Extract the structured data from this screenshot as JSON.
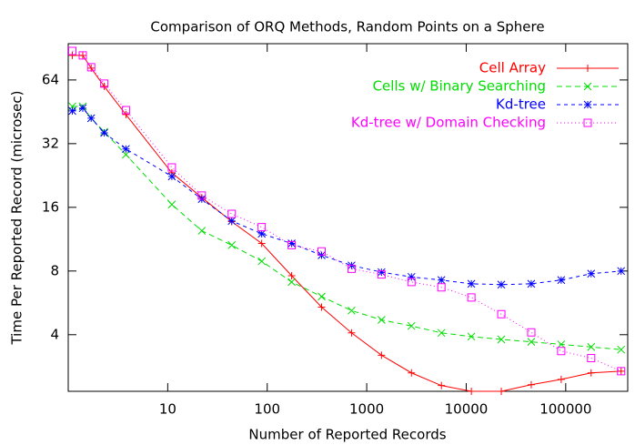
{
  "chart_data": {
    "type": "line",
    "title": "Comparison of ORQ Methods, Random Points on a Sphere",
    "x_label": "Number of Reported Records",
    "y_label": "Time Per Reported Record (microsec)",
    "x": [
      1.1,
      1.4,
      1.7,
      2.3,
      3.8,
      11,
      22,
      44,
      88,
      176,
      352,
      704,
      1408,
      2816,
      5632,
      11264,
      22528,
      45056,
      90112,
      180224,
      360448
    ],
    "series": [
      {
        "name": "Cell Array",
        "color": "#ff0000",
        "dash": "",
        "marker": "plus",
        "values": [
          83.6,
          83.6,
          72.8,
          59.7,
          43.9,
          23.3,
          17.8,
          13.7,
          10.8,
          7.6,
          5.4,
          4.08,
          3.2,
          2.64,
          2.3,
          2.16,
          2.16,
          2.32,
          2.46,
          2.64,
          2.69
        ]
      },
      {
        "name": "Cells w/ Binary Searching",
        "color": "#00dd00",
        "dash": "6 4",
        "marker": "cross",
        "values": [
          48,
          48,
          42.2,
          36.4,
          28.4,
          16.5,
          12.4,
          10.6,
          8.9,
          7.1,
          6.06,
          5.2,
          4.7,
          4.4,
          4.08,
          3.92,
          3.8,
          3.7,
          3.6,
          3.5,
          3.4
        ]
      },
      {
        "name": "Kd-tree",
        "color": "#0000ff",
        "dash": "4 4",
        "marker": "star",
        "values": [
          45.7,
          47.1,
          42.2,
          36.0,
          30.2,
          22.4,
          17.5,
          13.8,
          12.0,
          10.8,
          9.5,
          8.5,
          7.9,
          7.5,
          7.25,
          6.96,
          6.9,
          6.96,
          7.25,
          7.77,
          8.0
        ]
      },
      {
        "name": "Kd-tree w/ Domain Checking",
        "color": "#ff00ff",
        "dash": "1 3",
        "marker": "square",
        "values": [
          87.8,
          83.6,
          73.5,
          61.5,
          46.1,
          24.7,
          18.2,
          14.9,
          12.9,
          10.6,
          9.9,
          8.2,
          7.7,
          7.1,
          6.7,
          6.0,
          5.0,
          4.1,
          3.35,
          3.1,
          2.69
        ]
      }
    ],
    "xlim": [
      1,
      420000
    ],
    "ylim": [
      2.16,
      95
    ],
    "xticks": [
      10,
      100,
      1000,
      10000,
      100000
    ],
    "yticks": [
      4,
      8,
      16,
      32,
      64
    ],
    "log_x": true,
    "log_y": true,
    "legend": "top-right"
  }
}
